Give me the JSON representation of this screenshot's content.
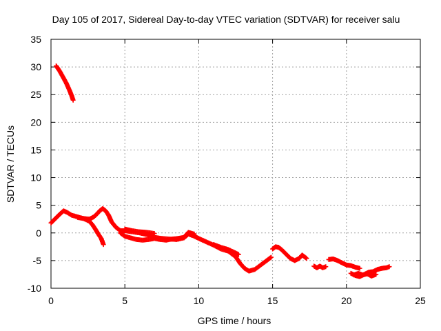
{
  "chart_data": {
    "type": "scatter",
    "title": "Day 105 of 2017, Sidereal Day-to-day VTEC variation (SDTVAR) for receiver salu",
    "xlabel": "GPS time / hours",
    "ylabel": "SDTVAR / TECUs",
    "xlim": [
      0,
      25
    ],
    "ylim": [
      -10,
      35
    ],
    "xticks": [
      0,
      5,
      10,
      15,
      20,
      25
    ],
    "yticks": [
      -10,
      -5,
      0,
      5,
      10,
      15,
      20,
      25,
      30,
      35
    ],
    "xtick_labels": [
      "0",
      "5",
      "10",
      "15",
      "20",
      "25"
    ],
    "ytick_labels": [
      "-10",
      "-5",
      "0",
      "5",
      "10",
      "15",
      "20",
      "25",
      "30",
      "35"
    ],
    "grid": true,
    "series_color": "#ff0000",
    "series": [
      {
        "name": "early-high-arc",
        "x": [
          0.35,
          0.6,
          0.85,
          1.05,
          1.25,
          1.4,
          1.5
        ],
        "y": [
          30.2,
          29.2,
          28.0,
          27.0,
          25.8,
          24.8,
          24.0
        ]
      },
      {
        "name": "main-track-a",
        "x": [
          0.0,
          0.3,
          0.6,
          0.85,
          1.1,
          1.4,
          1.8,
          2.2,
          2.6,
          2.9,
          3.1,
          3.3,
          3.5,
          3.7,
          3.9,
          4.1,
          4.4,
          4.7,
          5.0,
          5.5,
          6.0,
          6.5,
          7.0,
          7.5,
          8.0,
          8.5,
          9.0,
          9.3,
          9.7,
          10.0,
          10.5,
          11.0,
          11.5,
          12.0,
          12.5,
          12.8,
          13.1,
          13.4,
          13.8,
          14.2,
          14.6,
          14.9
        ],
        "y": [
          1.8,
          2.6,
          3.4,
          4.0,
          3.7,
          3.2,
          2.9,
          2.6,
          2.5,
          2.9,
          3.4,
          4.0,
          4.4,
          4.0,
          3.2,
          2.0,
          1.0,
          0.4,
          0.4,
          0.2,
          0.0,
          -0.3,
          -0.8,
          -1.0,
          -1.1,
          -1.2,
          -0.9,
          -0.2,
          -0.6,
          -1.0,
          -1.6,
          -2.2,
          -2.9,
          -3.3,
          -4.3,
          -5.5,
          -6.4,
          -6.9,
          -6.6,
          -5.8,
          -5.0,
          -4.4
        ]
      },
      {
        "name": "main-track-b",
        "x": [
          1.8,
          2.2,
          2.6,
          2.8,
          3.0,
          3.2,
          3.4,
          3.55
        ],
        "y": [
          2.8,
          2.6,
          2.1,
          1.5,
          0.7,
          -0.2,
          -1.0,
          -2.1
        ]
      },
      {
        "name": "main-track-c",
        "x": [
          4.7,
          5.0,
          5.4,
          5.8,
          6.2,
          6.6,
          7.0,
          7.4,
          7.8,
          8.2,
          8.6,
          9.0,
          9.3,
          9.7
        ],
        "y": [
          0.0,
          -0.6,
          -0.9,
          -1.2,
          -1.3,
          -1.2,
          -1.0,
          -1.2,
          -1.3,
          -1.1,
          -1.0,
          -0.8,
          0.1,
          -0.2
        ]
      },
      {
        "name": "main-track-d",
        "x": [
          5.0,
          5.5,
          6.0,
          6.5,
          7.0
        ],
        "y": [
          0.7,
          0.4,
          0.2,
          0.1,
          -0.1
        ]
      },
      {
        "name": "main-track-e",
        "x": [
          11.0,
          11.5,
          12.0,
          12.4,
          12.7
        ],
        "y": [
          -2.1,
          -2.6,
          -3.0,
          -3.5,
          -3.9
        ]
      },
      {
        "name": "mid-late-a",
        "x": [
          15.0,
          15.2,
          15.4,
          15.6,
          15.9,
          16.2,
          16.5,
          16.8,
          17.0,
          17.3
        ],
        "y": [
          -2.9,
          -2.5,
          -2.6,
          -3.0,
          -3.8,
          -4.6,
          -5.0,
          -4.6,
          -4.0,
          -4.6
        ]
      },
      {
        "name": "mid-late-b",
        "x": [
          17.8,
          18.0,
          18.2,
          18.4,
          18.6
        ],
        "y": [
          -6.0,
          -6.3,
          -6.0,
          -6.3,
          -6.1
        ]
      },
      {
        "name": "late-a",
        "x": [
          18.8,
          19.1,
          19.4,
          19.7,
          20.0,
          20.3,
          20.6,
          20.9
        ],
        "y": [
          -4.8,
          -4.7,
          -5.0,
          -5.4,
          -5.8,
          -5.9,
          -6.2,
          -6.4
        ]
      },
      {
        "name": "late-b",
        "x": [
          20.3,
          20.6,
          20.9,
          21.2,
          21.5,
          21.8,
          22.1,
          22.4,
          22.7,
          22.9
        ],
        "y": [
          -7.3,
          -7.7,
          -7.9,
          -7.5,
          -7.1,
          -7.0,
          -6.6,
          -6.4,
          -6.3,
          -6.1
        ]
      },
      {
        "name": "late-c",
        "x": [
          20.5,
          20.8,
          21.1,
          21.4,
          21.7,
          22.0
        ],
        "y": [
          -7.6,
          -7.3,
          -7.6,
          -7.4,
          -7.8,
          -7.5
        ]
      }
    ]
  }
}
